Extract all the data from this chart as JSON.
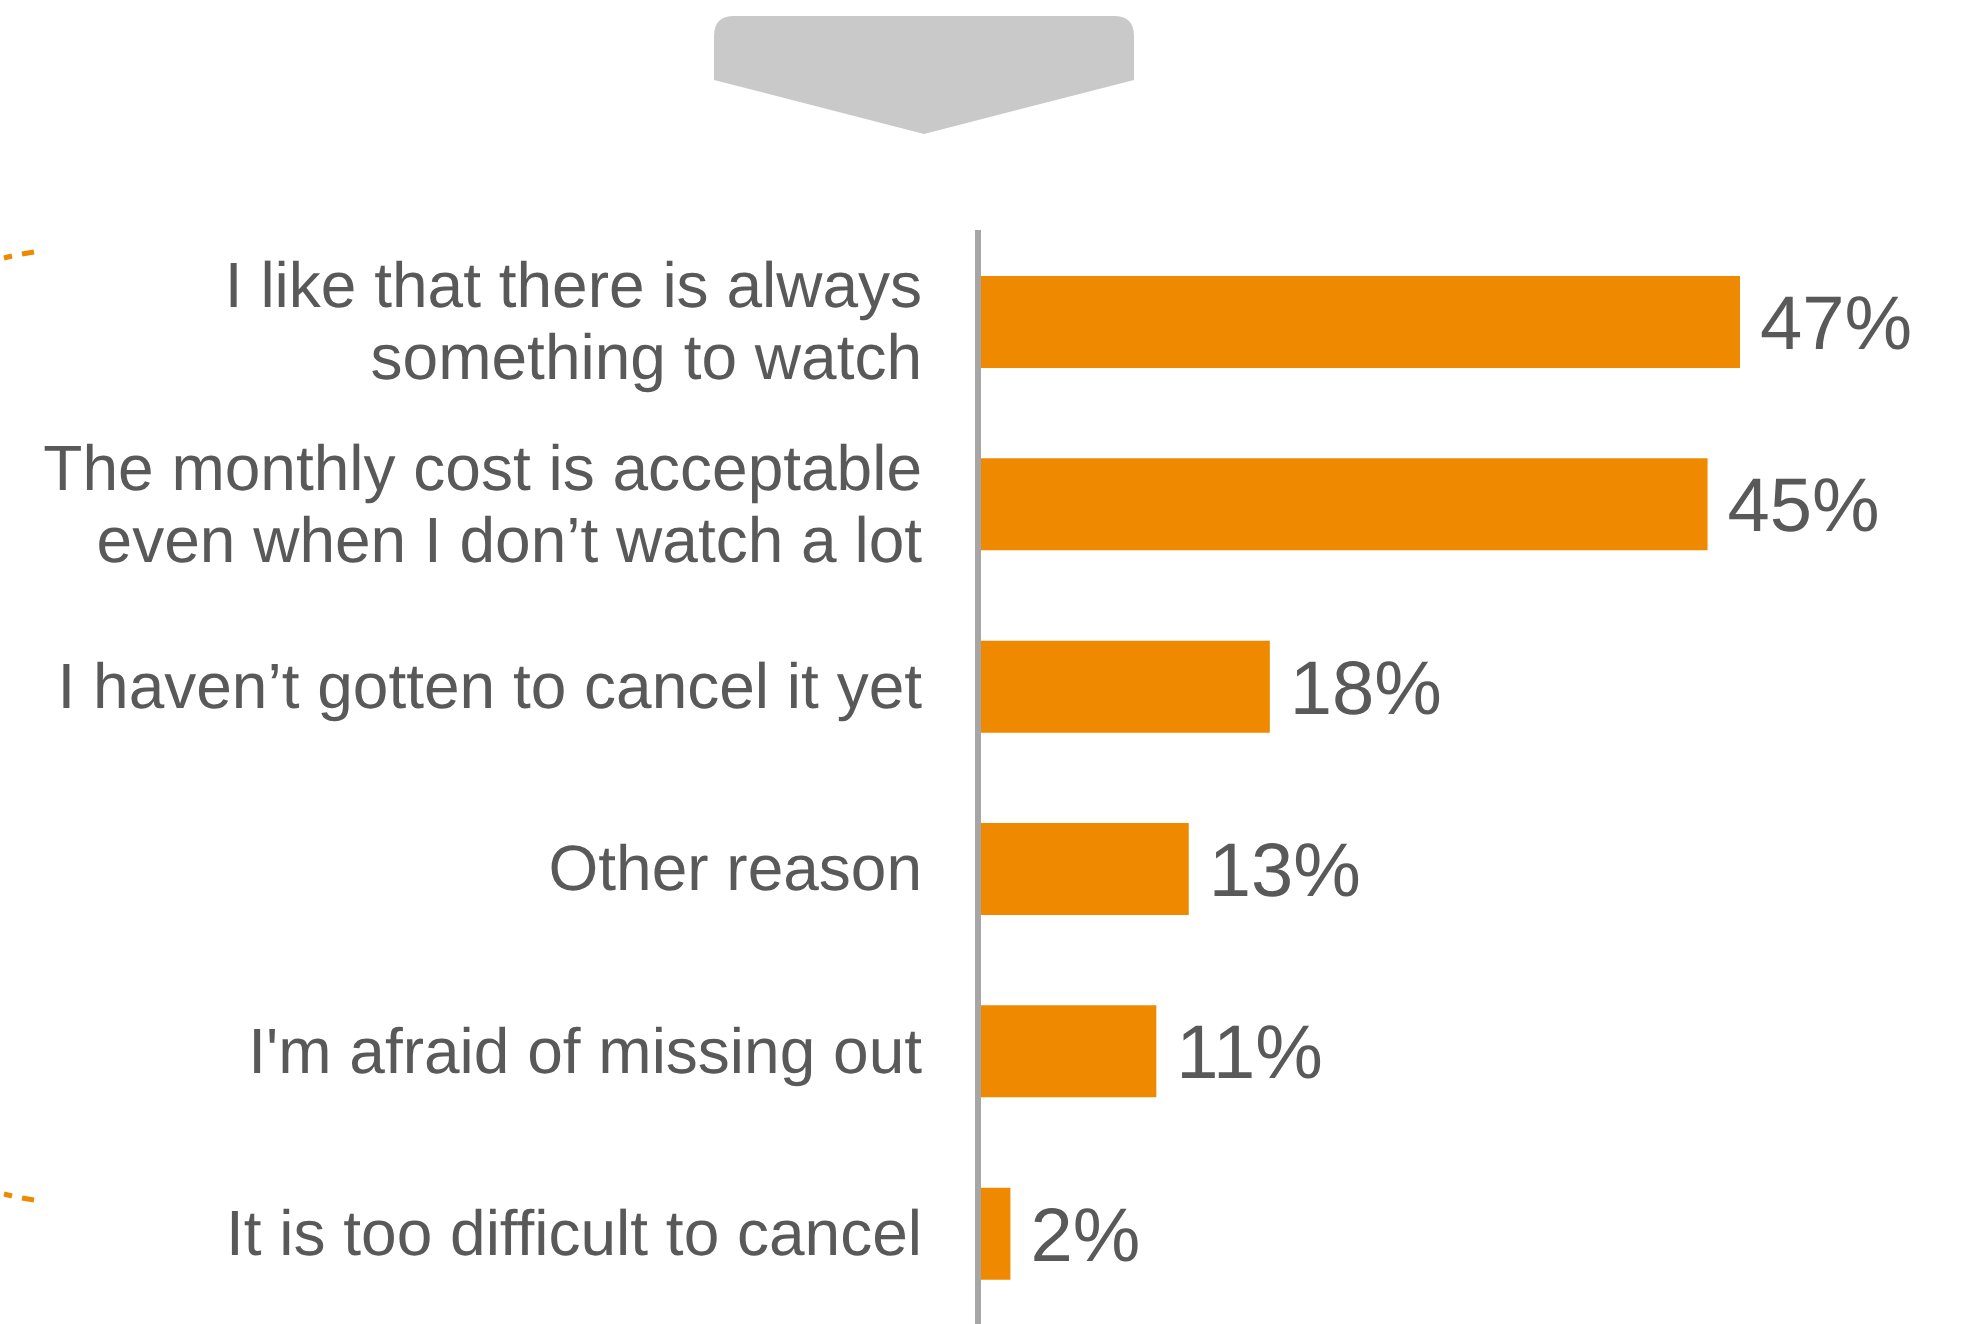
{
  "chart_data": {
    "type": "bar",
    "orientation": "horizontal",
    "categories": [
      "I like that there is always something to watch",
      "The monthly cost is acceptable even when I don’t watch a lot",
      "I haven’t gotten to cancel it yet",
      "Other reason",
      "I'm afraid of missing out",
      "It is too difficult to cancel"
    ],
    "values": [
      47,
      45,
      18,
      13,
      11,
      2
    ],
    "value_labels": [
      "47%",
      "45%",
      "18%",
      "13%",
      "11%",
      "2%"
    ],
    "color": "#ef8a00",
    "tick_labels": "y"
  }
}
